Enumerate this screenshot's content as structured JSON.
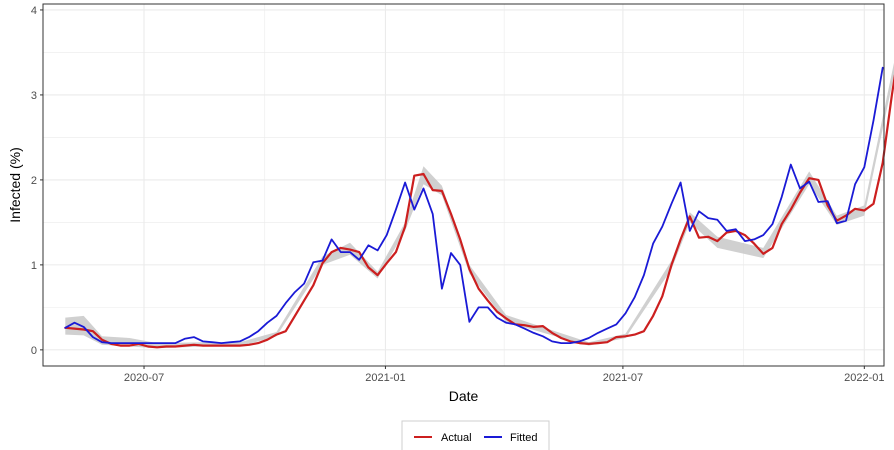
{
  "chart_data": {
    "type": "line",
    "xlabel": "Date",
    "ylabel": "Infected (%)",
    "x_ticks": [
      "2020-07",
      "2021-01",
      "2021-07",
      "2022-01"
    ],
    "y_ticks": [
      "0",
      "1",
      "2",
      "3",
      "4"
    ],
    "x_range": [
      "2020-04-15",
      "2022-01-16"
    ],
    "y_range": [
      -0.19,
      4.07
    ],
    "grid": true,
    "legend_position": "bottom",
    "colors": {
      "actual": "#cc1f1f",
      "fitted": "#1a1ad6",
      "band": "#c8c8c8",
      "grid": "#ebebeb"
    },
    "series": [
      {
        "name": "Actual",
        "color": "#cc1f1f",
        "points": [
          [
            "2020-05-02",
            0.26
          ],
          [
            "2020-05-09",
            0.25
          ],
          [
            "2020-05-16",
            0.24
          ],
          [
            "2020-05-23",
            0.22
          ],
          [
            "2020-05-30",
            0.12
          ],
          [
            "2020-06-06",
            0.07
          ],
          [
            "2020-06-13",
            0.05
          ],
          [
            "2020-06-20",
            0.05
          ],
          [
            "2020-06-27",
            0.07
          ],
          [
            "2020-07-04",
            0.04
          ],
          [
            "2020-07-11",
            0.03
          ],
          [
            "2020-07-18",
            0.04
          ],
          [
            "2020-07-25",
            0.04
          ],
          [
            "2020-08-01",
            0.05
          ],
          [
            "2020-08-08",
            0.06
          ],
          [
            "2020-08-15",
            0.05
          ],
          [
            "2020-08-22",
            0.05
          ],
          [
            "2020-08-29",
            0.05
          ],
          [
            "2020-09-05",
            0.05
          ],
          [
            "2020-09-12",
            0.05
          ],
          [
            "2020-09-19",
            0.06
          ],
          [
            "2020-09-26",
            0.08
          ],
          [
            "2020-10-03",
            0.12
          ],
          [
            "2020-10-10",
            0.18
          ],
          [
            "2020-10-17",
            0.22
          ],
          [
            "2020-10-24",
            0.4
          ],
          [
            "2020-10-31",
            0.58
          ],
          [
            "2020-11-07",
            0.76
          ],
          [
            "2020-11-14",
            1.02
          ],
          [
            "2020-11-21",
            1.15
          ],
          [
            "2020-11-28",
            1.2
          ],
          [
            "2020-12-05",
            1.18
          ],
          [
            "2020-12-12",
            1.15
          ],
          [
            "2020-12-19",
            0.97
          ],
          [
            "2020-12-26",
            0.88
          ],
          [
            "2021-01-02",
            1.02
          ],
          [
            "2021-01-09",
            1.15
          ],
          [
            "2021-01-16",
            1.45
          ],
          [
            "2021-01-23",
            2.05
          ],
          [
            "2021-01-30",
            2.07
          ],
          [
            "2021-02-06",
            1.88
          ],
          [
            "2021-02-13",
            1.87
          ],
          [
            "2021-02-20",
            1.6
          ],
          [
            "2021-02-27",
            1.3
          ],
          [
            "2021-03-06",
            0.95
          ],
          [
            "2021-03-13",
            0.72
          ],
          [
            "2021-03-20",
            0.58
          ],
          [
            "2021-03-27",
            0.45
          ],
          [
            "2021-04-03",
            0.37
          ],
          [
            "2021-04-10",
            0.3
          ],
          [
            "2021-04-17",
            0.29
          ],
          [
            "2021-04-24",
            0.27
          ],
          [
            "2021-05-01",
            0.28
          ],
          [
            "2021-05-08",
            0.2
          ],
          [
            "2021-05-15",
            0.14
          ],
          [
            "2021-05-22",
            0.1
          ],
          [
            "2021-05-29",
            0.08
          ],
          [
            "2021-06-05",
            0.07
          ],
          [
            "2021-06-12",
            0.08
          ],
          [
            "2021-06-19",
            0.09
          ],
          [
            "2021-06-26",
            0.15
          ],
          [
            "2021-07-03",
            0.16
          ],
          [
            "2021-07-10",
            0.18
          ],
          [
            "2021-07-17",
            0.22
          ],
          [
            "2021-07-24",
            0.4
          ],
          [
            "2021-07-31",
            0.63
          ],
          [
            "2021-08-07",
            1.0
          ],
          [
            "2021-08-14",
            1.3
          ],
          [
            "2021-08-21",
            1.57
          ],
          [
            "2021-08-28",
            1.32
          ],
          [
            "2021-09-04",
            1.33
          ],
          [
            "2021-09-11",
            1.28
          ],
          [
            "2021-09-18",
            1.38
          ],
          [
            "2021-09-25",
            1.4
          ],
          [
            "2021-10-02",
            1.35
          ],
          [
            "2021-10-09",
            1.25
          ],
          [
            "2021-10-16",
            1.13
          ],
          [
            "2021-10-23",
            1.2
          ],
          [
            "2021-10-30",
            1.48
          ],
          [
            "2021-11-06",
            1.65
          ],
          [
            "2021-11-13",
            1.85
          ],
          [
            "2021-11-20",
            2.02
          ],
          [
            "2021-11-27",
            2.0
          ],
          [
            "2021-12-04",
            1.7
          ],
          [
            "2021-12-11",
            1.52
          ],
          [
            "2021-12-18",
            1.58
          ],
          [
            "2021-12-25",
            1.66
          ],
          [
            "2022-01-01",
            1.64
          ],
          [
            "2022-01-08",
            1.72
          ],
          [
            "2022-01-15",
            2.2
          ],
          [
            "2022-01-22",
            3.0
          ],
          [
            "2022-01-29",
            3.7
          ]
        ]
      },
      {
        "name": "Fitted",
        "color": "#1a1ad6",
        "points": [
          [
            "2020-05-02",
            0.26
          ],
          [
            "2020-05-09",
            0.32
          ],
          [
            "2020-05-16",
            0.27
          ],
          [
            "2020-05-23",
            0.15
          ],
          [
            "2020-05-30",
            0.09
          ],
          [
            "2020-06-06",
            0.08
          ],
          [
            "2020-06-13",
            0.08
          ],
          [
            "2020-06-20",
            0.08
          ],
          [
            "2020-06-27",
            0.08
          ],
          [
            "2020-07-04",
            0.08
          ],
          [
            "2020-07-11",
            0.08
          ],
          [
            "2020-07-18",
            0.08
          ],
          [
            "2020-07-25",
            0.08
          ],
          [
            "2020-08-01",
            0.13
          ],
          [
            "2020-08-08",
            0.15
          ],
          [
            "2020-08-15",
            0.1
          ],
          [
            "2020-08-22",
            0.09
          ],
          [
            "2020-08-29",
            0.08
          ],
          [
            "2020-09-05",
            0.09
          ],
          [
            "2020-09-12",
            0.1
          ],
          [
            "2020-09-19",
            0.15
          ],
          [
            "2020-09-26",
            0.22
          ],
          [
            "2020-10-03",
            0.32
          ],
          [
            "2020-10-10",
            0.4
          ],
          [
            "2020-10-17",
            0.55
          ],
          [
            "2020-10-24",
            0.68
          ],
          [
            "2020-10-31",
            0.78
          ],
          [
            "2020-11-07",
            1.03
          ],
          [
            "2020-11-14",
            1.05
          ],
          [
            "2020-11-21",
            1.3
          ],
          [
            "2020-11-28",
            1.15
          ],
          [
            "2020-12-05",
            1.15
          ],
          [
            "2020-12-12",
            1.06
          ],
          [
            "2020-12-19",
            1.23
          ],
          [
            "2020-12-26",
            1.17
          ],
          [
            "2021-01-02",
            1.35
          ],
          [
            "2021-01-09",
            1.65
          ],
          [
            "2021-01-16",
            1.97
          ],
          [
            "2021-01-23",
            1.65
          ],
          [
            "2021-01-30",
            1.9
          ],
          [
            "2021-02-06",
            1.6
          ],
          [
            "2021-02-13",
            0.72
          ],
          [
            "2021-02-20",
            1.14
          ],
          [
            "2021-02-27",
            1.0
          ],
          [
            "2021-03-06",
            0.33
          ],
          [
            "2021-03-13",
            0.5
          ],
          [
            "2021-03-20",
            0.5
          ],
          [
            "2021-03-27",
            0.38
          ],
          [
            "2021-04-03",
            0.32
          ],
          [
            "2021-04-10",
            0.3
          ],
          [
            "2021-04-17",
            0.25
          ],
          [
            "2021-04-24",
            0.2
          ],
          [
            "2021-05-01",
            0.16
          ],
          [
            "2021-05-08",
            0.1
          ],
          [
            "2021-05-15",
            0.08
          ],
          [
            "2021-05-22",
            0.08
          ],
          [
            "2021-05-29",
            0.1
          ],
          [
            "2021-06-05",
            0.14
          ],
          [
            "2021-06-12",
            0.2
          ],
          [
            "2021-06-19",
            0.25
          ],
          [
            "2021-06-26",
            0.3
          ],
          [
            "2021-07-03",
            0.43
          ],
          [
            "2021-07-10",
            0.62
          ],
          [
            "2021-07-17",
            0.88
          ],
          [
            "2021-07-24",
            1.25
          ],
          [
            "2021-07-31",
            1.45
          ],
          [
            "2021-08-07",
            1.72
          ],
          [
            "2021-08-14",
            1.97
          ],
          [
            "2021-08-21",
            1.4
          ],
          [
            "2021-08-28",
            1.63
          ],
          [
            "2021-09-04",
            1.55
          ],
          [
            "2021-09-11",
            1.53
          ],
          [
            "2021-09-18",
            1.4
          ],
          [
            "2021-09-25",
            1.42
          ],
          [
            "2021-10-02",
            1.28
          ],
          [
            "2021-10-09",
            1.3
          ],
          [
            "2021-10-16",
            1.35
          ],
          [
            "2021-10-23",
            1.48
          ],
          [
            "2021-10-30",
            1.8
          ],
          [
            "2021-11-06",
            2.18
          ],
          [
            "2021-11-13",
            1.9
          ],
          [
            "2021-11-20",
            1.98
          ],
          [
            "2021-11-27",
            1.74
          ],
          [
            "2021-12-04",
            1.75
          ],
          [
            "2021-12-11",
            1.49
          ],
          [
            "2021-12-18",
            1.52
          ],
          [
            "2021-12-25",
            1.95
          ],
          [
            "2022-01-01",
            2.15
          ],
          [
            "2022-01-08",
            2.7
          ],
          [
            "2022-01-15",
            3.32
          ]
        ]
      }
    ],
    "confidence_band": {
      "points": [
        [
          "2020-05-02",
          0.18,
          0.38
        ],
        [
          "2020-05-16",
          0.17,
          0.4
        ],
        [
          "2020-05-30",
          0.06,
          0.16
        ],
        [
          "2020-06-20",
          0.04,
          0.14
        ],
        [
          "2020-07-11",
          0.02,
          0.08
        ],
        [
          "2020-08-15",
          0.04,
          0.09
        ],
        [
          "2020-09-12",
          0.04,
          0.09
        ],
        [
          "2020-10-10",
          0.16,
          0.21
        ],
        [
          "2020-11-14",
          1.0,
          1.1
        ],
        [
          "2020-12-05",
          1.12,
          1.26
        ],
        [
          "2020-12-26",
          0.84,
          0.92
        ],
        [
          "2021-01-16",
          1.4,
          1.5
        ],
        [
          "2021-01-30",
          1.95,
          2.16
        ],
        [
          "2021-02-13",
          1.82,
          1.93
        ],
        [
          "2021-03-06",
          0.9,
          1.0
        ],
        [
          "2021-04-03",
          0.33,
          0.41
        ],
        [
          "2021-05-08",
          0.17,
          0.23
        ],
        [
          "2021-06-05",
          0.05,
          0.09
        ],
        [
          "2021-07-03",
          0.14,
          0.19
        ],
        [
          "2021-08-07",
          0.95,
          1.05
        ],
        [
          "2021-08-21",
          1.5,
          1.62
        ],
        [
          "2021-09-11",
          1.2,
          1.33
        ],
        [
          "2021-10-16",
          1.08,
          1.2
        ],
        [
          "2021-11-20",
          1.95,
          2.1
        ],
        [
          "2021-12-11",
          1.47,
          1.58
        ],
        [
          "2022-01-01",
          1.58,
          1.7
        ],
        [
          "2022-01-29",
          3.62,
          3.78
        ]
      ]
    }
  }
}
